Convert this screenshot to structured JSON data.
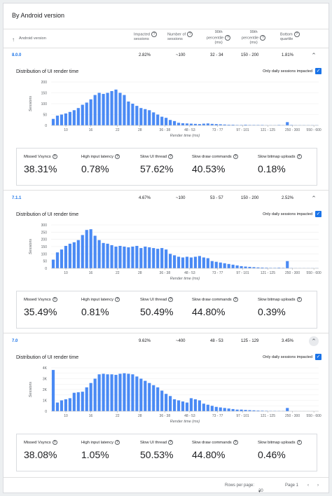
{
  "card": {
    "title": "By Android version"
  },
  "table": {
    "headers": {
      "version": "Android version",
      "impacted": [
        "Impacted",
        "sessions"
      ],
      "num": [
        "Number of",
        "sessions"
      ],
      "p90": [
        "90th",
        "percentile",
        "(ms)"
      ],
      "p99": [
        "99th",
        "percentile",
        "(ms)"
      ],
      "bottom": [
        "Bottom",
        "quartile"
      ]
    }
  },
  "sections": [
    {
      "row": {
        "version": "8.0.0",
        "impacted": "2.82%",
        "sessions": "~100",
        "p90": "32 - 34",
        "p99": "150 - 200",
        "bottom": "1.81%"
      },
      "chart_title": "Distribution of UI render time",
      "only_daily_label": "Only daily sessions impacted",
      "metrics": [
        {
          "label": "Missed Vsyncs",
          "value": "38.31%"
        },
        {
          "label": "High input latency",
          "value": "0.78%"
        },
        {
          "label": "Slow UI thread",
          "value": "57.62%"
        },
        {
          "label": "Slow draw commands",
          "value": "40.53%"
        },
        {
          "label": "Slow bitmap uploads",
          "value": "0.18%"
        }
      ]
    },
    {
      "row": {
        "version": "7.1.1",
        "impacted": "4.67%",
        "sessions": "~100",
        "p90": "53 - 57",
        "p99": "150 - 200",
        "bottom": "2.52%"
      },
      "chart_title": "Distribution of UI render time",
      "only_daily_label": "Only daily sessions impacted",
      "metrics": [
        {
          "label": "Missed Vsyncs",
          "value": "35.49%"
        },
        {
          "label": "High input latency",
          "value": "0.81%"
        },
        {
          "label": "Slow UI thread",
          "value": "50.49%"
        },
        {
          "label": "Slow draw commands",
          "value": "44.80%"
        },
        {
          "label": "Slow bitmap uploads",
          "value": "0.39%"
        }
      ]
    },
    {
      "row": {
        "version": "7.0",
        "impacted": "9.62%",
        "sessions": "~400",
        "p90": "48 - 53",
        "p99": "125 - 129",
        "bottom": "3.45%"
      },
      "chart_title": "Distribution of UI render time",
      "only_daily_label": "Only daily sessions impacted",
      "metrics": [
        {
          "label": "Missed Vsyncs",
          "value": "38.08%"
        },
        {
          "label": "High input latency",
          "value": "1.05%"
        },
        {
          "label": "Slow UI thread",
          "value": "50.53%"
        },
        {
          "label": "Slow draw commands",
          "value": "44.80%"
        },
        {
          "label": "Slow bitmap uploads",
          "value": "0.46%"
        }
      ]
    }
  ],
  "footer": {
    "rows_label": "Rows per page:",
    "rows_value": "20",
    "page_label": "Page 1"
  },
  "colors": {
    "bar": "#4a8af4",
    "accent": "#1a73e8"
  },
  "chart_data": [
    {
      "type": "bar",
      "title": "Distribution of UI render time",
      "xlabel": "Render time (ms)",
      "ylabel": "Sessions",
      "ylim": [
        0,
        200
      ],
      "yticks": [
        0,
        50,
        100,
        150,
        200
      ],
      "xtick_labels": [
        "10",
        "16",
        "22",
        "28",
        "36 - 38",
        "48 - 53",
        "73 - 77",
        "97 - 101",
        "121 - 125",
        "250 - 300",
        "550 - 600"
      ],
      "values": [
        30,
        45,
        50,
        55,
        62,
        70,
        80,
        95,
        105,
        120,
        140,
        150,
        145,
        150,
        158,
        165,
        150,
        140,
        110,
        100,
        90,
        80,
        75,
        70,
        60,
        50,
        40,
        35,
        25,
        20,
        12,
        10,
        9,
        8,
        7,
        6,
        8,
        9,
        7,
        6,
        5,
        4,
        3,
        3,
        2,
        2,
        3,
        2,
        2,
        2,
        2,
        1,
        1,
        1,
        2,
        1,
        15,
        2,
        1,
        1,
        1,
        1,
        1,
        1
      ]
    },
    {
      "type": "bar",
      "title": "Distribution of UI render time",
      "xlabel": "Render time (ms)",
      "ylabel": "Sessions",
      "ylim": [
        0,
        300
      ],
      "yticks": [
        0,
        50,
        100,
        150,
        200,
        250,
        300
      ],
      "xtick_labels": [
        "10",
        "16",
        "22",
        "28",
        "36 - 38",
        "48 - 53",
        "73 - 77",
        "97 - 101",
        "121 - 125",
        "250 - 300",
        "550 - 600"
      ],
      "values": [
        60,
        110,
        130,
        155,
        170,
        180,
        195,
        230,
        265,
        270,
        225,
        195,
        175,
        170,
        160,
        150,
        155,
        150,
        145,
        150,
        155,
        140,
        150,
        145,
        140,
        135,
        140,
        130,
        100,
        90,
        80,
        75,
        80,
        75,
        80,
        85,
        75,
        70,
        50,
        45,
        40,
        35,
        30,
        25,
        20,
        15,
        12,
        10,
        8,
        6,
        5,
        4,
        3,
        3,
        4,
        3,
        50,
        2,
        1,
        1,
        1,
        1,
        1,
        1
      ]
    },
    {
      "type": "bar",
      "title": "Distribution of UI render time",
      "xlabel": "Render time (ms)",
      "ylabel": "Sessions",
      "ylim": [
        0,
        4000
      ],
      "yticks": [
        0,
        500,
        1000,
        1500,
        2000,
        2500,
        3000,
        3500,
        4000
      ],
      "ytick_labels": [
        "0",
        "",
        "1K",
        "",
        "2K",
        "",
        "3K",
        "",
        "4K"
      ],
      "xtick_labels": [
        "10",
        "16",
        "22",
        "28",
        "36 - 38",
        "48 - 53",
        "73 - 77",
        "97 - 101",
        "121 - 125",
        "250 - 300",
        "550 - 600"
      ],
      "values": [
        3800,
        800,
        1000,
        1100,
        1200,
        1700,
        1750,
        1800,
        2200,
        2600,
        3000,
        3400,
        3450,
        3400,
        3400,
        3350,
        3450,
        3500,
        3450,
        3400,
        3200,
        3000,
        2800,
        2600,
        2400,
        2200,
        1900,
        1600,
        1400,
        1100,
        1000,
        900,
        800,
        1200,
        1100,
        1000,
        700,
        600,
        500,
        400,
        350,
        300,
        250,
        200,
        150,
        150,
        120,
        100,
        80,
        60,
        50,
        40,
        30,
        30,
        25,
        20,
        300,
        10,
        8,
        5,
        5,
        5,
        5,
        5
      ]
    }
  ]
}
